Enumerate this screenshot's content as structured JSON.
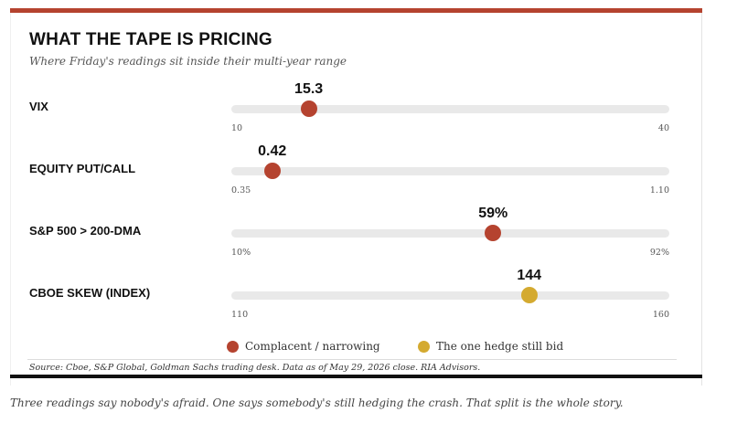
{
  "colors": {
    "accent_bar": "#b5432f",
    "complacent": "#b5432f",
    "hedge": "#d4aa30",
    "track": "#e9e9e9",
    "rule": "#111111"
  },
  "header": {
    "title": "WHAT THE TAPE IS PRICING",
    "subtitle": "Where Friday's readings sit inside their multi-year range"
  },
  "chart_data": {
    "type": "range-dot",
    "rows": [
      {
        "label": "VIX",
        "value": 15.3,
        "value_label": "15.3",
        "min": 10,
        "max": 40,
        "min_label": "10",
        "max_label": "40",
        "group": "complacent"
      },
      {
        "label": "EQUITY PUT/CALL",
        "value": 0.42,
        "value_label": "0.42",
        "min": 0.35,
        "max": 1.1,
        "min_label": "0.35",
        "max_label": "1.10",
        "group": "complacent"
      },
      {
        "label": "S&P 500 > 200-DMA",
        "value": 59,
        "value_label": "59%",
        "min": 10,
        "max": 92,
        "min_label": "10%",
        "max_label": "92%",
        "group": "complacent"
      },
      {
        "label": "CBOE SKEW (INDEX)",
        "value": 144,
        "value_label": "144",
        "min": 110,
        "max": 160,
        "min_label": "110",
        "max_label": "160",
        "group": "hedge"
      }
    ],
    "legend": [
      {
        "key": "complacent",
        "label": "Complacent / narrowing"
      },
      {
        "key": "hedge",
        "label": "The one hedge still bid"
      }
    ],
    "legend_position": "bottom-center"
  },
  "footer": {
    "source": "Source: Cboe, S&P Global, Goldman Sachs trading desk. Data as of May 29, 2026 close. RIA Advisors.",
    "caption": "Three readings say nobody's afraid. One says somebody's still hedging the crash. That split is the whole story."
  }
}
